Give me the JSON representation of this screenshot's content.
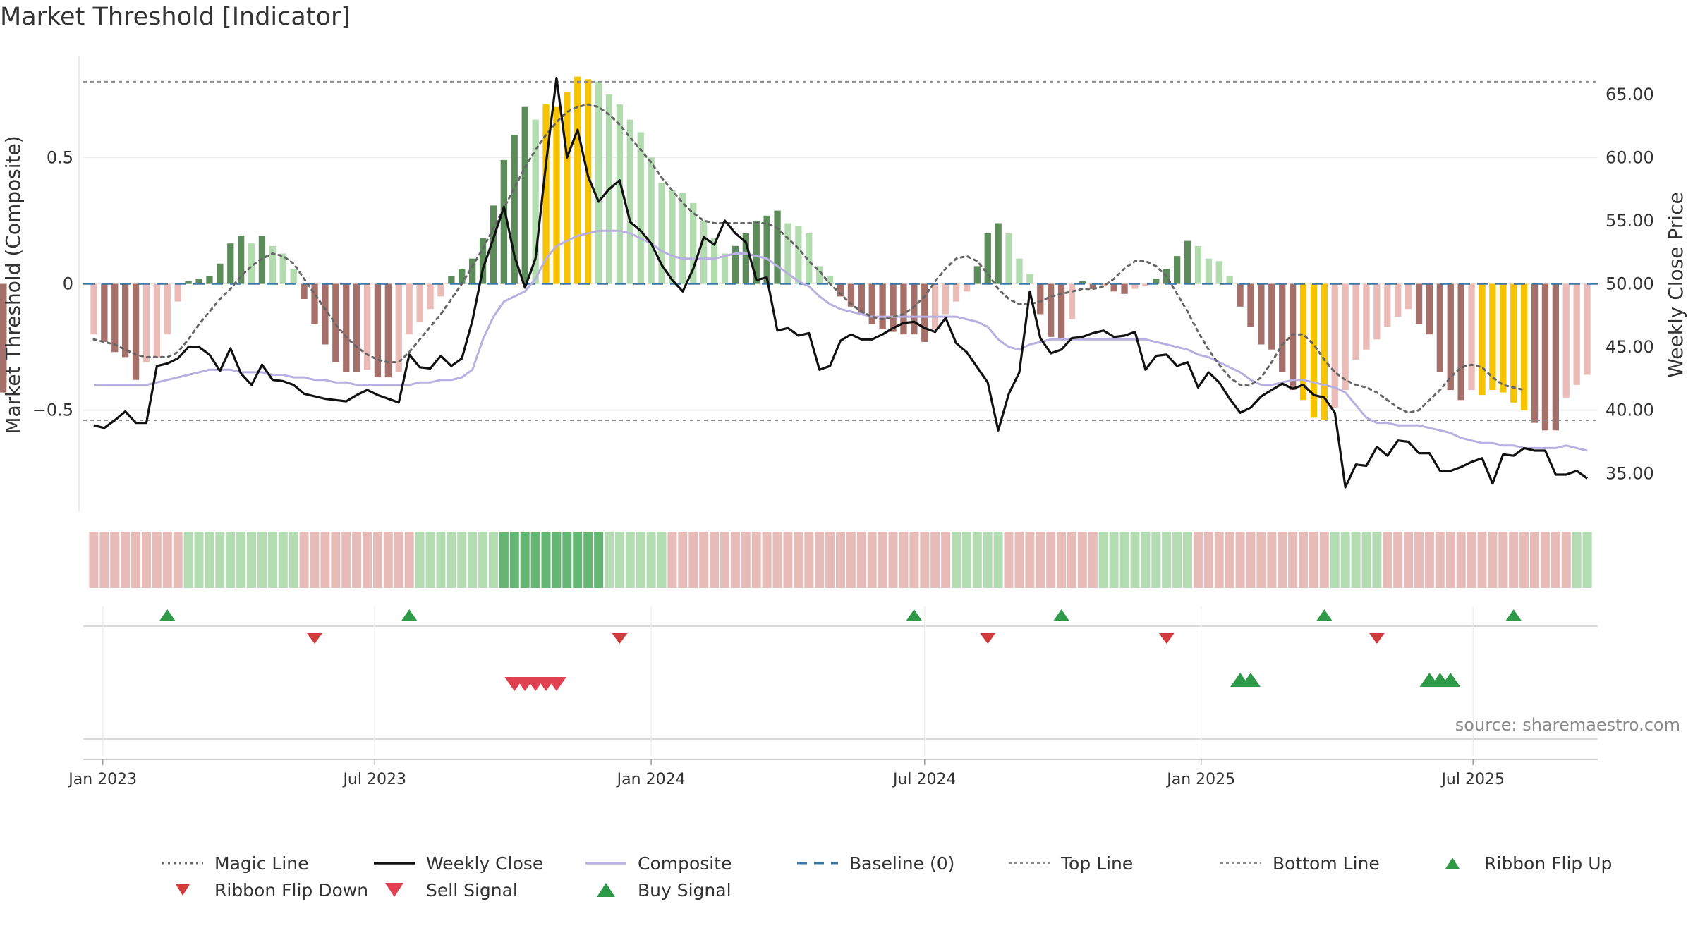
{
  "title": "Market Threshold [Indicator]",
  "source": "source: sharemaestro.com",
  "chart_data": {
    "type": "bar",
    "title": "Market Threshold [Indicator]",
    "y_left": {
      "label": "Market Threshold (Composite)",
      "ticks": [
        {
          "v": 0.5,
          "t": "0.5"
        },
        {
          "v": 0,
          "t": "0"
        },
        {
          "v": -0.5,
          "t": "−0.5"
        }
      ],
      "range": [
        -0.9,
        0.9
      ]
    },
    "y_right": {
      "label": "Weekly Close Price",
      "ticks": [
        {
          "v": 65,
          "t": "65.00"
        },
        {
          "v": 60,
          "t": "60.00"
        },
        {
          "v": 55,
          "t": "55.00"
        },
        {
          "v": 50,
          "t": "50.00"
        },
        {
          "v": 45,
          "t": "45.00"
        },
        {
          "v": 40,
          "t": "40.00"
        },
        {
          "v": 35,
          "t": "35.00"
        }
      ],
      "range": [
        32.0,
        68.0
      ]
    },
    "x_axis": {
      "range": [
        "2022-12-19",
        "2025-09-22"
      ],
      "ticks": [
        {
          "date": "2023-01-01",
          "label": "Jan 2023"
        },
        {
          "date": "2023-07-01",
          "label": "Jul 2023"
        },
        {
          "date": "2024-01-01",
          "label": "Jan 2024"
        },
        {
          "date": "2024-07-01",
          "label": "Jul 2024"
        },
        {
          "date": "2025-01-01",
          "label": "Jan 2025"
        },
        {
          "date": "2025-07-01",
          "label": "Jul 2025"
        }
      ]
    },
    "reference_lines": {
      "top_line": 0.8,
      "bottom_line": -0.54,
      "baseline": 0
    },
    "series": [
      {
        "name": "Magic Line",
        "color": "#666666",
        "style": "dotted"
      },
      {
        "name": "Weekly Close",
        "color": "#111111",
        "style": "solid"
      },
      {
        "name": "Composite",
        "color": "#b8b0e0",
        "style": "solid"
      },
      {
        "name": "Baseline (0)",
        "color": "#3a78a8",
        "style": "dashed"
      },
      {
        "name": "Top Line",
        "color": "#8a8a8a",
        "style": "dotted"
      },
      {
        "name": "Bottom Line",
        "color": "#8a8a8a",
        "style": "dotted"
      }
    ],
    "weeks": [
      "2022-12-26",
      "2023-01-02",
      "2023-01-09",
      "2023-01-16",
      "2023-01-23",
      "2023-01-30",
      "2023-02-06",
      "2023-02-13",
      "2023-02-20",
      "2023-02-27",
      "2023-03-06",
      "2023-03-13",
      "2023-03-20",
      "2023-03-27",
      "2023-04-03",
      "2023-04-10",
      "2023-04-17",
      "2023-04-24",
      "2023-05-01",
      "2023-05-08",
      "2023-05-15",
      "2023-05-22",
      "2023-05-29",
      "2023-06-05",
      "2023-06-12",
      "2023-06-19",
      "2023-06-26",
      "2023-07-03",
      "2023-07-10",
      "2023-07-17",
      "2023-07-24",
      "2023-07-31",
      "2023-08-07",
      "2023-08-14",
      "2023-08-21",
      "2023-08-28",
      "2023-09-04",
      "2023-09-11",
      "2023-09-18",
      "2023-09-25",
      "2023-10-02",
      "2023-10-09",
      "2023-10-16",
      "2023-10-23",
      "2023-10-30",
      "2023-11-06",
      "2023-11-13",
      "2023-11-20",
      "2023-11-27",
      "2023-12-04",
      "2023-12-11",
      "2023-12-18",
      "2023-12-25",
      "2024-01-01",
      "2024-01-08",
      "2024-01-15",
      "2024-01-22",
      "2024-01-29",
      "2024-02-05",
      "2024-02-12",
      "2024-02-19",
      "2024-02-26",
      "2024-03-04",
      "2024-03-11",
      "2024-03-18",
      "2024-03-25",
      "2024-04-01",
      "2024-04-08",
      "2024-04-15",
      "2024-04-22",
      "2024-04-29",
      "2024-05-06",
      "2024-05-13",
      "2024-05-20",
      "2024-05-27",
      "2024-06-03",
      "2024-06-10",
      "2024-06-17",
      "2024-06-24",
      "2024-07-01",
      "2024-07-08",
      "2024-07-15",
      "2024-07-22",
      "2024-07-29",
      "2024-08-05",
      "2024-08-12",
      "2024-08-19",
      "2024-08-26",
      "2024-09-02",
      "2024-09-09",
      "2024-09-16",
      "2024-09-23",
      "2024-09-30",
      "2024-10-07",
      "2024-10-14",
      "2024-10-21",
      "2024-10-28",
      "2024-11-04",
      "2024-11-11",
      "2024-11-18",
      "2024-11-25",
      "2024-12-02",
      "2024-12-09",
      "2024-12-16",
      "2024-12-23",
      "2024-12-30",
      "2025-01-06",
      "2025-01-13",
      "2025-01-20",
      "2025-01-27",
      "2025-02-03",
      "2025-02-10",
      "2025-02-17",
      "2025-02-24",
      "2025-03-03",
      "2025-03-10",
      "2025-03-17",
      "2025-03-24",
      "2025-03-31",
      "2025-04-07",
      "2025-04-14",
      "2025-04-21",
      "2025-04-28",
      "2025-05-05",
      "2025-05-12",
      "2025-05-19",
      "2025-05-26",
      "2025-06-02",
      "2025-06-09",
      "2025-06-16",
      "2025-06-23",
      "2025-06-30",
      "2025-07-07",
      "2025-07-14",
      "2025-07-21",
      "2025-07-28",
      "2025-08-04",
      "2025-08-11",
      "2025-08-18",
      "2025-08-25",
      "2025-09-01",
      "2025-09-08",
      "2025-09-15"
    ],
    "composite_bars": [
      -0.2,
      -0.23,
      -0.27,
      -0.29,
      -0.38,
      -0.31,
      -0.29,
      -0.2,
      -0.07,
      0.01,
      0.02,
      0.03,
      0.08,
      0.16,
      0.19,
      0.16,
      0.19,
      0.15,
      0.12,
      0.06,
      -0.06,
      -0.16,
      -0.24,
      -0.31,
      -0.35,
      -0.35,
      -0.34,
      -0.37,
      -0.37,
      -0.35,
      -0.2,
      -0.15,
      -0.1,
      -0.05,
      0.03,
      0.06,
      0.1,
      0.18,
      0.31,
      0.49,
      0.59,
      0.7,
      0.65,
      0.71,
      0.7,
      0.76,
      0.82,
      0.81,
      0.8,
      0.75,
      0.71,
      0.65,
      0.6,
      0.5,
      0.4,
      0.37,
      0.36,
      0.32,
      0.25,
      0.18,
      0.12,
      0.15,
      0.2,
      0.25,
      0.27,
      0.29,
      0.24,
      0.23,
      0.2,
      0.07,
      0.03,
      -0.05,
      -0.09,
      -0.12,
      -0.16,
      -0.18,
      -0.19,
      -0.2,
      -0.2,
      -0.23,
      -0.18,
      -0.12,
      -0.07,
      -0.03,
      0.07,
      0.2,
      0.24,
      0.2,
      0.1,
      0.04,
      -0.12,
      -0.21,
      -0.22,
      -0.14,
      0.01,
      -0.02,
      -0.01,
      -0.03,
      -0.04,
      -0.02,
      -0.01,
      0.02,
      0.06,
      0.11,
      0.17,
      0.15,
      0.1,
      0.09,
      0.03,
      -0.09,
      -0.17,
      -0.24,
      -0.26,
      -0.35,
      -0.42,
      -0.46,
      -0.53,
      -0.54,
      -0.49,
      -0.42,
      -0.3,
      -0.26,
      -0.22,
      -0.17,
      -0.13,
      -0.1,
      -0.16,
      -0.2,
      -0.35,
      -0.42,
      -0.46,
      -0.42,
      -0.44,
      -0.42,
      -0.43,
      -0.47,
      -0.5,
      -0.55,
      -0.58,
      -0.58,
      -0.45,
      -0.4,
      -0.36,
      -0.3,
      -0.26,
      -0.22,
      -0.29,
      -0.3,
      -0.4,
      -0.41,
      -0.43
    ],
    "weekly_close": [
      38.8,
      38.6,
      39.2,
      39.9,
      39.0,
      39.0,
      43.5,
      43.7,
      44.1,
      45.0,
      45.0,
      44.4,
      43.1,
      44.9,
      42.9,
      42.0,
      43.6,
      42.4,
      42.3,
      42.0,
      41.3,
      41.1,
      40.9,
      40.8,
      40.7,
      41.2,
      41.6,
      41.2,
      40.9,
      40.6,
      44.4,
      43.4,
      43.3,
      44.3,
      43.5,
      44.1,
      47.1,
      51.2,
      53.6,
      56.1,
      52.2,
      49.7,
      52.0,
      59.5,
      66.3,
      60.0,
      62.2,
      58.5,
      56.5,
      57.5,
      58.2,
      54.9,
      54.2,
      53.2,
      51.5,
      50.3,
      49.4,
      51.2,
      53.7,
      53.1,
      55.0,
      54.0,
      53.3,
      50.3,
      50.5,
      46.3,
      46.5,
      45.9,
      46.1,
      43.2,
      43.5,
      45.5,
      46.0,
      45.6,
      45.6,
      46.0,
      46.5,
      46.9,
      47.0,
      46.5,
      46.2,
      47.3,
      45.3,
      44.6,
      43.4,
      42.2,
      38.4,
      41.3,
      43.0,
      49.4,
      45.7,
      44.5,
      44.8,
      45.7,
      45.8,
      46.1,
      46.3,
      45.8,
      45.9,
      46.2,
      43.2,
      44.3,
      44.4,
      43.5,
      43.8,
      41.8,
      43.0,
      42.2,
      40.9,
      39.8,
      40.2,
      41.1,
      41.6,
      42.1,
      41.7,
      42.0,
      41.2,
      41.0,
      39.8,
      33.9,
      35.7,
      35.6,
      37.1,
      36.4,
      37.6,
      37.5,
      36.6,
      36.6,
      35.2,
      35.2,
      35.5,
      35.9,
      36.2,
      34.2,
      36.5,
      36.4,
      37.0,
      36.8,
      36.8,
      34.9,
      34.9,
      35.2,
      34.6
    ],
    "composite_line": [
      -0.4,
      -0.4,
      -0.4,
      -0.4,
      -0.4,
      -0.4,
      -0.39,
      -0.38,
      -0.37,
      -0.36,
      -0.35,
      -0.34,
      -0.34,
      -0.34,
      -0.35,
      -0.35,
      -0.35,
      -0.36,
      -0.36,
      -0.37,
      -0.37,
      -0.38,
      -0.38,
      -0.39,
      -0.39,
      -0.4,
      -0.4,
      -0.4,
      -0.4,
      -0.4,
      -0.4,
      -0.39,
      -0.39,
      -0.38,
      -0.38,
      -0.37,
      -0.34,
      -0.22,
      -0.13,
      -0.07,
      -0.05,
      -0.03,
      0.02,
      0.1,
      0.15,
      0.17,
      0.19,
      0.2,
      0.21,
      0.21,
      0.21,
      0.2,
      0.18,
      0.16,
      0.13,
      0.11,
      0.1,
      0.1,
      0.1,
      0.1,
      0.11,
      0.12,
      0.12,
      0.11,
      0.1,
      0.07,
      0.04,
      0.01,
      -0.01,
      -0.05,
      -0.08,
      -0.1,
      -0.11,
      -0.12,
      -0.13,
      -0.13,
      -0.13,
      -0.13,
      -0.13,
      -0.13,
      -0.13,
      -0.13,
      -0.13,
      -0.14,
      -0.15,
      -0.17,
      -0.22,
      -0.25,
      -0.26,
      -0.24,
      -0.23,
      -0.22,
      -0.22,
      -0.22,
      -0.22,
      -0.22,
      -0.22,
      -0.22,
      -0.22,
      -0.22,
      -0.22,
      -0.23,
      -0.24,
      -0.25,
      -0.26,
      -0.28,
      -0.29,
      -0.31,
      -0.33,
      -0.35,
      -0.38,
      -0.4,
      -0.4,
      -0.39,
      -0.38,
      -0.38,
      -0.39,
      -0.4,
      -0.41,
      -0.43,
      -0.48,
      -0.53,
      -0.55,
      -0.55,
      -0.56,
      -0.56,
      -0.56,
      -0.57,
      -0.58,
      -0.59,
      -0.61,
      -0.62,
      -0.63,
      -0.63,
      -0.64,
      -0.64,
      -0.65,
      -0.65,
      -0.65,
      -0.65,
      -0.64,
      -0.65,
      -0.66,
      -0.67,
      -0.68
    ],
    "magic_line": [
      -0.22,
      -0.23,
      -0.24,
      -0.26,
      -0.28,
      -0.29,
      -0.29,
      -0.29,
      -0.27,
      -0.22,
      -0.16,
      -0.11,
      -0.06,
      -0.02,
      0.03,
      0.07,
      0.1,
      0.12,
      0.11,
      0.08,
      0.02,
      -0.04,
      -0.1,
      -0.16,
      -0.21,
      -0.25,
      -0.28,
      -0.3,
      -0.31,
      -0.31,
      -0.27,
      -0.22,
      -0.17,
      -0.12,
      -0.06,
      0.0,
      0.07,
      0.14,
      0.22,
      0.3,
      0.38,
      0.46,
      0.53,
      0.59,
      0.64,
      0.68,
      0.7,
      0.71,
      0.7,
      0.67,
      0.63,
      0.58,
      0.53,
      0.48,
      0.42,
      0.37,
      0.32,
      0.28,
      0.25,
      0.24,
      0.24,
      0.24,
      0.24,
      0.24,
      0.24,
      0.22,
      0.18,
      0.14,
      0.09,
      0.05,
      0.0,
      -0.04,
      -0.08,
      -0.11,
      -0.13,
      -0.14,
      -0.13,
      -0.12,
      -0.09,
      -0.05,
      0.01,
      0.06,
      0.1,
      0.11,
      0.09,
      0.04,
      -0.02,
      -0.06,
      -0.08,
      -0.08,
      -0.07,
      -0.05,
      -0.04,
      -0.03,
      -0.02,
      -0.02,
      -0.01,
      0.02,
      0.06,
      0.09,
      0.09,
      0.07,
      0.03,
      -0.04,
      -0.11,
      -0.19,
      -0.26,
      -0.32,
      -0.37,
      -0.4,
      -0.4,
      -0.37,
      -0.31,
      -0.24,
      -0.2,
      -0.2,
      -0.24,
      -0.3,
      -0.35,
      -0.38,
      -0.4,
      -0.41,
      -0.43,
      -0.46,
      -0.49,
      -0.51,
      -0.5,
      -0.46,
      -0.42,
      -0.37,
      -0.33,
      -0.32,
      -0.33,
      -0.37,
      -0.4,
      -0.41,
      -0.42
    ],
    "highlight_weeks": [
      43,
      44,
      45,
      46,
      47,
      115,
      116,
      117,
      132,
      133,
      134,
      135,
      136
    ],
    "ribbon": {
      "green_weeks_light": [
        9,
        10,
        11,
        12,
        13,
        14,
        15,
        16,
        17,
        18,
        19,
        31,
        32,
        33,
        34,
        35,
        36,
        37,
        38,
        49,
        50,
        51,
        52,
        53,
        54,
        82,
        83,
        84,
        85,
        86,
        96,
        97,
        98,
        99,
        100,
        101,
        102,
        103,
        104,
        118,
        119,
        120,
        121,
        122,
        141,
        142,
        143,
        144,
        145,
        146,
        147,
        148,
        149,
        150,
        151,
        152
      ],
      "green_weeks_strong": [
        39,
        40,
        41,
        42,
        43,
        44,
        45,
        46,
        47,
        48
      ]
    },
    "ribbon_flip_up": [
      "2023-02-13",
      "2023-07-24",
      "2024-06-24",
      "2024-09-30",
      "2025-03-24",
      "2025-07-28"
    ],
    "ribbon_flip_down": [
      "2023-05-22",
      "2023-12-11",
      "2024-08-12",
      "2024-12-09",
      "2025-04-28"
    ],
    "sell_signal": [
      "2023-10-02",
      "2023-10-09",
      "2023-10-16",
      "2023-10-23",
      "2023-10-30"
    ],
    "buy_signal": [
      "2025-01-27",
      "2025-02-03",
      "2025-06-02",
      "2025-06-09",
      "2025-06-16"
    ]
  },
  "legend": {
    "magic_line": "Magic Line",
    "weekly_close": "Weekly Close",
    "composite": "Composite",
    "baseline": "Baseline (0)",
    "top_line": "Top Line",
    "bottom_line": "Bottom Line",
    "ribbon_flip_up": "Ribbon Flip Up",
    "ribbon_flip_down": "Ribbon Flip Down",
    "sell_signal": "Sell Signal",
    "buy_signal": "Buy Signal"
  },
  "colors": {
    "bar_positive_strong": "#5b8c5a",
    "bar_positive_light": "#b2dcaf",
    "bar_negative_strong": "#a56f6a",
    "bar_negative_light": "#ebbbb7",
    "highlight": "#f7c300",
    "flip_up": "#2e9a48",
    "flip_down": "#d23b3b",
    "sell": "#e0404f",
    "buy": "#2e9a48",
    "weekly_close": "#111111",
    "composite": "#b8b0e0",
    "magic_line": "#666666",
    "baseline": "#3a78a8",
    "ref_lines": "#8a8a8a"
  }
}
